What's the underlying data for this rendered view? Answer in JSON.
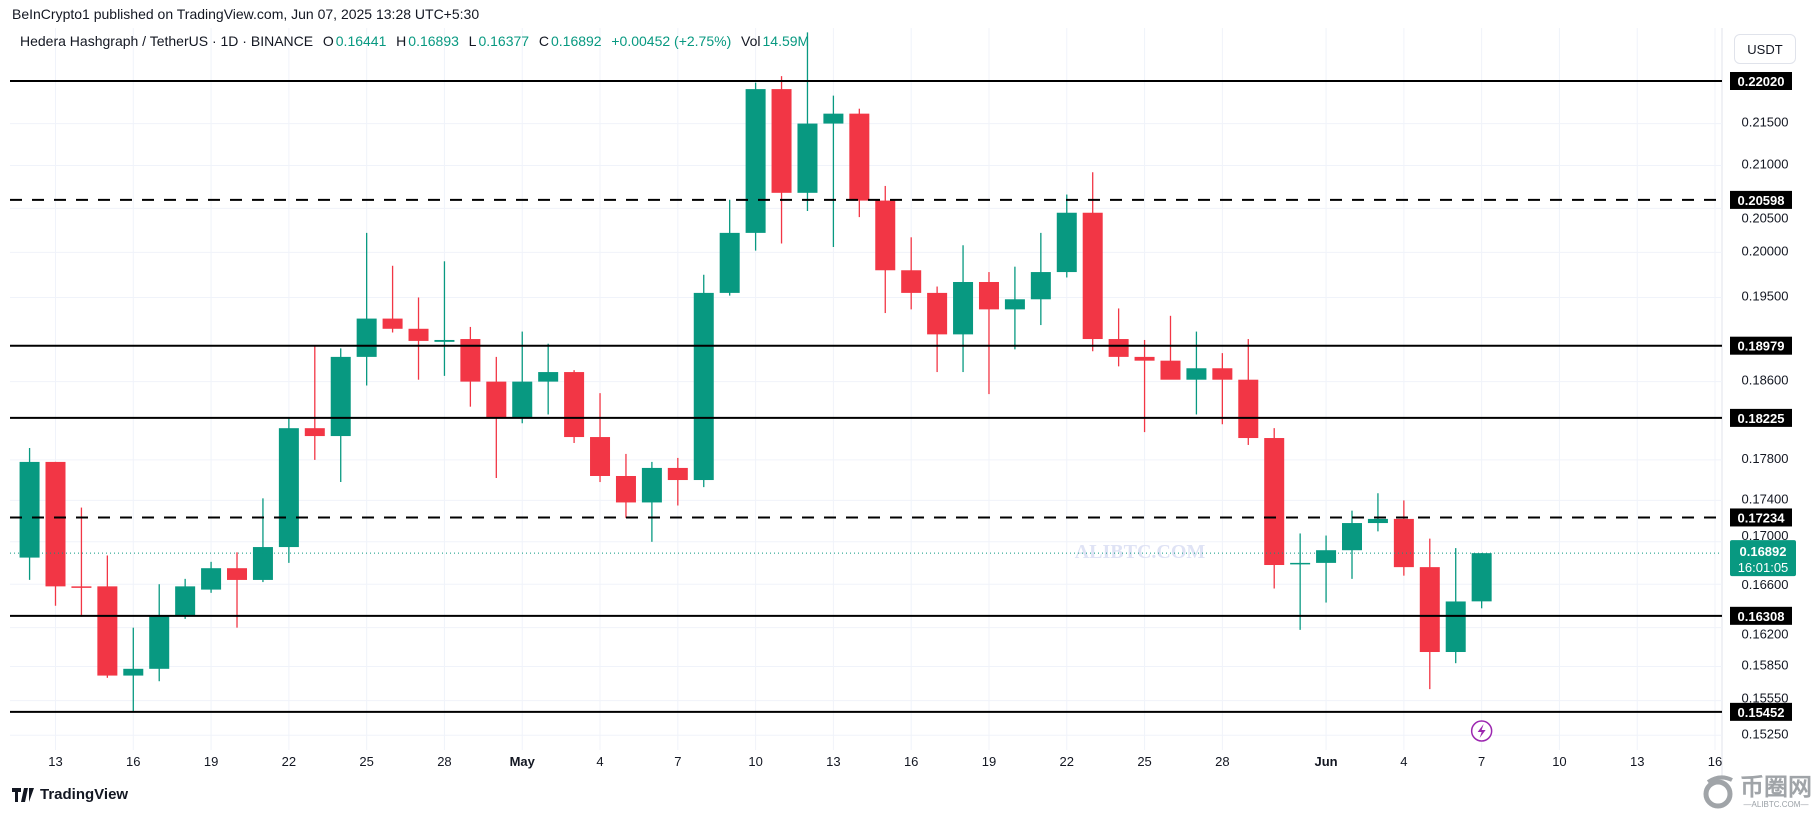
{
  "publisher": "BeInCrypto1 published on TradingView.com, Jun 07, 2025 13:28 UTC+5:30",
  "legend": {
    "symbol": "Hedera Hashgraph / TetherUS · 1D · BINANCE",
    "o_label": "O",
    "o": "0.16441",
    "h_label": "H",
    "h": "0.16893",
    "l_label": "L",
    "l": "0.16377",
    "c_label": "C",
    "c": "0.16892",
    "change": "+0.00452 (+2.75%)",
    "vol_label": "Vol",
    "vol": "14.59M"
  },
  "currency": "USDT",
  "watermark": "ALIBTC.COM",
  "branding": {
    "tradingview": "TradingView",
    "ali_cn": "币圈网",
    "ali_en": "—ALIBTC.COM—"
  },
  "colors": {
    "up": "#089981",
    "down": "#f23645",
    "level": "#000000",
    "grid": "#f0f3fa"
  },
  "chart_data": {
    "type": "candlestick",
    "title": "Hedera Hashgraph / TetherUS · 1D · BINANCE",
    "yscale": "log",
    "ylim": [
      0.1505,
      0.228
    ],
    "y_ticks": [
      "0.21500",
      "0.21000",
      "0.20500",
      "0.20000",
      "0.19500",
      "0.18600",
      "0.17800",
      "0.17400",
      "0.17000",
      "0.16600",
      "0.16200",
      "0.15850",
      "0.15550",
      "0.15250"
    ],
    "x_ticks": [
      {
        "day": 0,
        "label": "13"
      },
      {
        "day": 3,
        "label": "16"
      },
      {
        "day": 6,
        "label": "19"
      },
      {
        "day": 9,
        "label": "22"
      },
      {
        "day": 12,
        "label": "25"
      },
      {
        "day": 15,
        "label": "28"
      },
      {
        "day": 18,
        "label": "May"
      },
      {
        "day": 21,
        "label": "4"
      },
      {
        "day": 24,
        "label": "7"
      },
      {
        "day": 27,
        "label": "10"
      },
      {
        "day": 30,
        "label": "13"
      },
      {
        "day": 33,
        "label": "16"
      },
      {
        "day": 36,
        "label": "19"
      },
      {
        "day": 39,
        "label": "22"
      },
      {
        "day": 42,
        "label": "25"
      },
      {
        "day": 45,
        "label": "28"
      },
      {
        "day": 49,
        "label": "Jun"
      },
      {
        "day": 52,
        "label": "4"
      },
      {
        "day": 55,
        "label": "7"
      },
      {
        "day": 58,
        "label": "10"
      },
      {
        "day": 61,
        "label": "13"
      },
      {
        "day": 64,
        "label": "16"
      }
    ],
    "start_date": "2025-04-12",
    "candles": [
      [
        0.1685,
        0.1792,
        0.1664,
        0.1778
      ],
      [
        0.1778,
        0.1778,
        0.164,
        0.1658
      ],
      [
        0.1658,
        0.1733,
        0.163,
        0.1657
      ],
      [
        0.1658,
        0.1687,
        0.1575,
        0.1577
      ],
      [
        0.1577,
        0.162,
        0.1545,
        0.1583
      ],
      [
        0.1583,
        0.166,
        0.1572,
        0.1631
      ],
      [
        0.1631,
        0.1665,
        0.1628,
        0.1658
      ],
      [
        0.1655,
        0.1681,
        0.1652,
        0.1675
      ],
      [
        0.1675,
        0.169,
        0.162,
        0.1664
      ],
      [
        0.1664,
        0.1742,
        0.1662,
        0.1695
      ],
      [
        0.1695,
        0.1822,
        0.168,
        0.1812
      ],
      [
        0.1812,
        0.1898,
        0.178,
        0.1804
      ],
      [
        0.1804,
        0.1895,
        0.1758,
        0.1886
      ],
      [
        0.1886,
        0.2022,
        0.1856,
        0.1927
      ],
      [
        0.1927,
        0.1985,
        0.1912,
        0.1916
      ],
      [
        0.1916,
        0.195,
        0.1862,
        0.1903
      ],
      [
        0.1902,
        0.199,
        0.1866,
        0.1904
      ],
      [
        0.1905,
        0.1918,
        0.1834,
        0.186
      ],
      [
        0.186,
        0.1886,
        0.1762,
        0.1822
      ],
      [
        0.1822,
        0.1913,
        0.1817,
        0.186
      ],
      [
        0.186,
        0.19,
        0.1826,
        0.187
      ],
      [
        0.187,
        0.1872,
        0.1797,
        0.1803
      ],
      [
        0.1803,
        0.1848,
        0.1758,
        0.1764
      ],
      [
        0.1764,
        0.1786,
        0.1723,
        0.1738
      ],
      [
        0.1738,
        0.1778,
        0.17,
        0.1772
      ],
      [
        0.1772,
        0.1782,
        0.1735,
        0.176
      ],
      [
        0.176,
        0.1975,
        0.1753,
        0.1955
      ],
      [
        0.1955,
        0.206,
        0.1952,
        0.2022
      ],
      [
        0.2022,
        0.22,
        0.2002,
        0.2192
      ],
      [
        0.2192,
        0.2208,
        0.201,
        0.2068
      ],
      [
        0.2068,
        0.2263,
        0.2047,
        0.215
      ],
      [
        0.215,
        0.2184,
        0.2006,
        0.2162
      ],
      [
        0.2162,
        0.2168,
        0.204,
        0.2059
      ],
      [
        0.2059,
        0.2076,
        0.1933,
        0.198
      ],
      [
        0.198,
        0.2017,
        0.1937,
        0.1955
      ],
      [
        0.1955,
        0.1962,
        0.187,
        0.191
      ],
      [
        0.191,
        0.2008,
        0.187,
        0.1967
      ],
      [
        0.1967,
        0.1978,
        0.1847,
        0.1937
      ],
      [
        0.1937,
        0.1984,
        0.1894,
        0.1948
      ],
      [
        0.1948,
        0.2022,
        0.192,
        0.1978
      ],
      [
        0.1978,
        0.2066,
        0.1972,
        0.2045
      ],
      [
        0.2045,
        0.2092,
        0.1892,
        0.1905
      ],
      [
        0.1905,
        0.1938,
        0.1876,
        0.1886
      ],
      [
        0.1886,
        0.1904,
        0.1808,
        0.1882
      ],
      [
        0.1882,
        0.193,
        0.1866,
        0.1862
      ],
      [
        0.1862,
        0.1913,
        0.1826,
        0.1874
      ],
      [
        0.1874,
        0.189,
        0.1816,
        0.1862
      ],
      [
        0.1862,
        0.1905,
        0.1795,
        0.1802
      ],
      [
        0.1802,
        0.1812,
        0.1656,
        0.1678
      ],
      [
        0.168,
        0.1708,
        0.1618,
        0.168
      ],
      [
        0.168,
        0.1706,
        0.1643,
        0.1692
      ],
      [
        0.1692,
        0.173,
        0.1665,
        0.1718
      ],
      [
        0.1718,
        0.1747,
        0.171,
        0.1722
      ],
      [
        0.1722,
        0.174,
        0.1668,
        0.1676
      ],
      [
        0.1676,
        0.1703,
        0.1565,
        0.1598
      ],
      [
        0.1598,
        0.1694,
        0.1588,
        0.1644
      ],
      [
        0.16441,
        0.16893,
        0.16377,
        0.16892
      ]
    ],
    "levels": [
      {
        "value": "0.22020",
        "style": "solid"
      },
      {
        "value": "0.20598",
        "style": "dashed"
      },
      {
        "value": "0.18979",
        "style": "solid"
      },
      {
        "value": "0.18225",
        "style": "solid"
      },
      {
        "value": "0.17234",
        "style": "dashed"
      },
      {
        "value": "0.16308",
        "style": "solid"
      },
      {
        "value": "0.15452",
        "style": "solid"
      }
    ],
    "last_price": {
      "value": "0.16892",
      "countdown": "16:01:05"
    }
  }
}
